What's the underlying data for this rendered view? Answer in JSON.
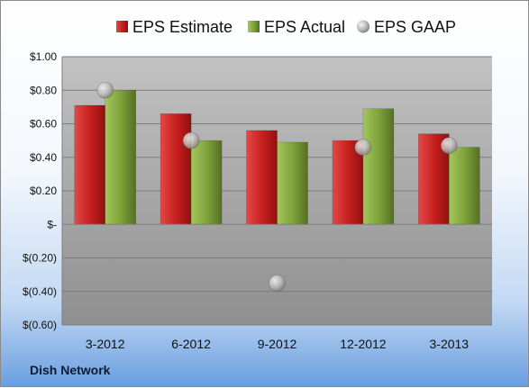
{
  "company_name": "Dish Network",
  "colors": {
    "estimate": "#c9201f",
    "actual": "#7fa43a",
    "gaap": "#b8b8b8",
    "plot_top": "#c2c2c2",
    "plot_bottom": "#8f8f8f"
  },
  "chart_data": {
    "type": "bar",
    "title": "",
    "xlabel": "",
    "ylabel": "",
    "categories": [
      "3-2012",
      "6-2012",
      "9-2012",
      "12-2012",
      "3-2013"
    ],
    "series": [
      {
        "name": "EPS Estimate",
        "type": "bar",
        "values": [
          0.71,
          0.66,
          0.56,
          0.5,
          0.54
        ]
      },
      {
        "name": "EPS Actual",
        "type": "bar",
        "values": [
          0.8,
          0.5,
          0.49,
          0.69,
          0.46
        ]
      },
      {
        "name": "EPS GAAP",
        "type": "scatter",
        "values": [
          0.8,
          0.5,
          -0.35,
          0.46,
          0.47
        ]
      }
    ],
    "ylim": [
      -0.6,
      1.0
    ],
    "y_ticks": [
      {
        "value": 1.0,
        "label": "$1.00"
      },
      {
        "value": 0.8,
        "label": "$0.80"
      },
      {
        "value": 0.6,
        "label": "$0.60"
      },
      {
        "value": 0.4,
        "label": "$0.40"
      },
      {
        "value": 0.2,
        "label": "$0.20"
      },
      {
        "value": 0.0,
        "label": "$-"
      },
      {
        "value": -0.2,
        "label": "$(0.20)"
      },
      {
        "value": -0.4,
        "label": "$(0.40)"
      },
      {
        "value": -0.6,
        "label": "$(0.60)"
      }
    ],
    "grid": true,
    "legend_position": "top"
  }
}
